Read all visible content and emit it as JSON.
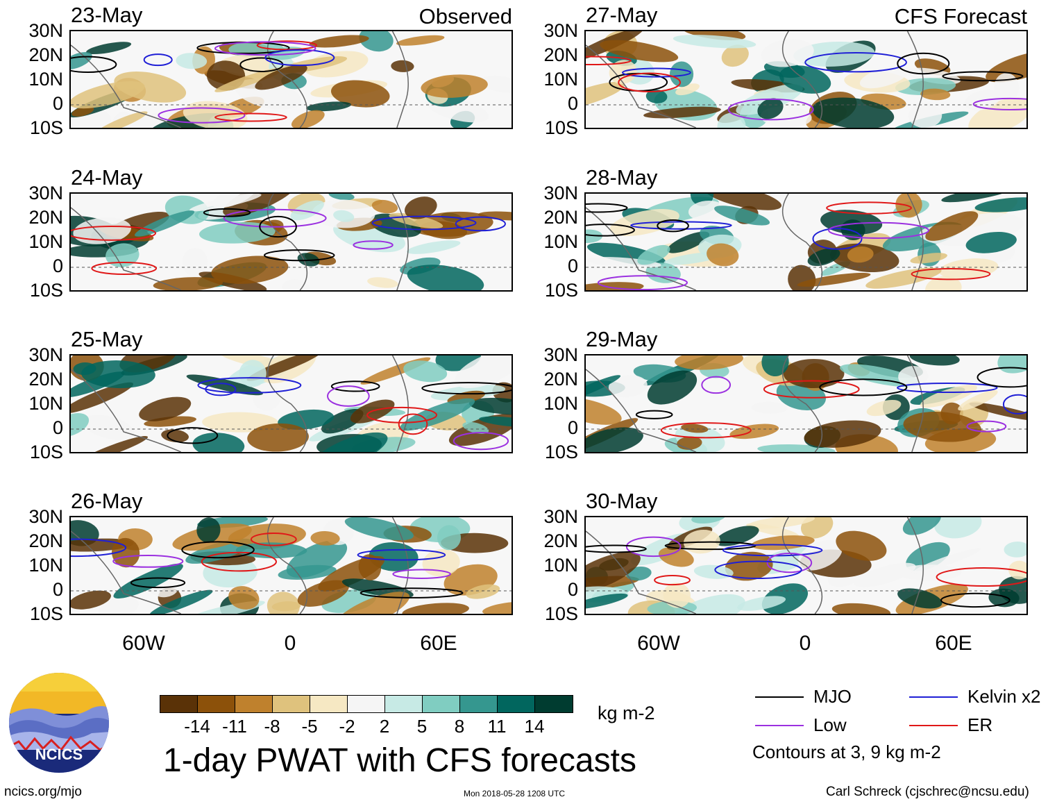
{
  "header": {
    "observed_label": "Observed",
    "forecast_label": "CFS Forecast"
  },
  "panels": [
    {
      "date": "23-May",
      "column": "observed",
      "row": 0
    },
    {
      "date": "24-May",
      "column": "observed",
      "row": 1
    },
    {
      "date": "25-May",
      "column": "observed",
      "row": 2
    },
    {
      "date": "26-May",
      "column": "observed",
      "row": 3
    },
    {
      "date": "27-May",
      "column": "forecast",
      "row": 0
    },
    {
      "date": "28-May",
      "column": "forecast",
      "row": 1
    },
    {
      "date": "29-May",
      "column": "forecast",
      "row": 2
    },
    {
      "date": "30-May",
      "column": "forecast",
      "row": 3
    }
  ],
  "axes": {
    "lat_ticks": [
      "30N",
      "20N",
      "10N",
      "0",
      "10S"
    ],
    "lon_ticks": [
      "60W",
      "0",
      "60E"
    ]
  },
  "colorbar": {
    "colors": [
      "#5a3207",
      "#8c510a",
      "#bf812d",
      "#dfc27d",
      "#f6e8c3",
      "#f5f5f5",
      "#c7eae5",
      "#80cdc1",
      "#35978f",
      "#01665e",
      "#003c30"
    ],
    "ticks": [
      "-14",
      "-11",
      "-8",
      "-5",
      "-2",
      "2",
      "5",
      "8",
      "11",
      "14"
    ],
    "units": "kg m-2"
  },
  "title": "1-day PWAT with CFS forecasts",
  "legend": {
    "items": [
      {
        "label": "MJO",
        "color": "#000000"
      },
      {
        "label": "Kelvin x2",
        "color": "#1f1fd6"
      },
      {
        "label": "Low",
        "color": "#9b30e0"
      },
      {
        "label": "ER",
        "color": "#e01818"
      }
    ],
    "contour_note": "Contours at 3, 9 kg m-2"
  },
  "footer": {
    "website": "ncics.org/mjo",
    "timestamp": "Mon 2018-05-28 1208 UTC",
    "credit": "Carl Schreck (cjschrec@ncsu.edu)"
  },
  "logo": {
    "text": "NCICS"
  }
}
